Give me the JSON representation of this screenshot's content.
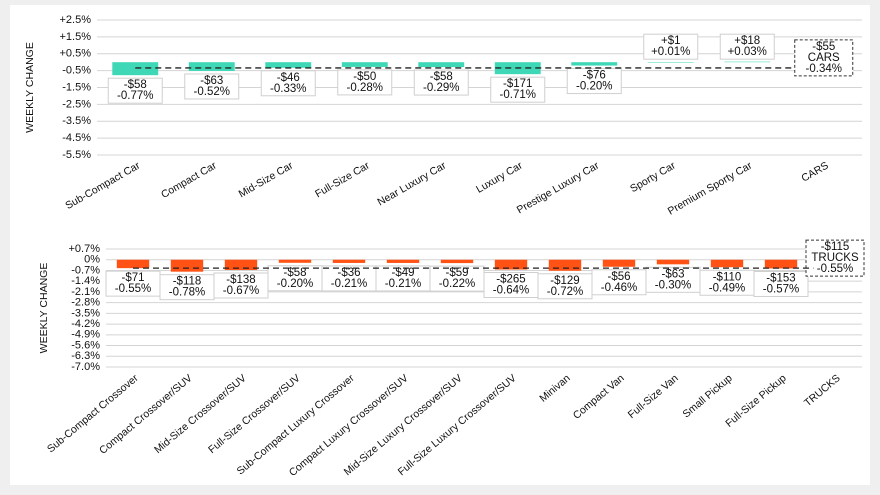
{
  "chart_data": [
    {
      "type": "bar",
      "y_label": "WEEKLY CHANGE",
      "categories": [
        "Sub-Compact Car",
        "Compact Car",
        "Mid-Size Car",
        "Full-Size Car",
        "Near Luxury Car",
        "Luxury Car",
        "Prestige Luxury Car",
        "Sporty Car",
        "Premium Sporty Car",
        "CARS"
      ],
      "values": [
        -0.77,
        -0.52,
        -0.33,
        -0.28,
        -0.29,
        -0.71,
        -0.2,
        0.01,
        0.03,
        -0.34
      ],
      "value_labels": [
        "-0.77%",
        "-0.52%",
        "-0.33%",
        "-0.28%",
        "-0.29%",
        "-0.71%",
        "-0.20%",
        "+0.01%",
        "+0.03%",
        "-0.34%"
      ],
      "dollar_labels": [
        "-$58",
        "-$63",
        "-$46",
        "-$50",
        "-$58",
        "-$171",
        "-$76",
        "+$1",
        "+$18",
        "-$55"
      ],
      "color": "#3ED8B6",
      "ylim": [
        -5.5,
        2.5
      ],
      "yticks": [
        {
          "value": 2.5,
          "label": "+2.5%"
        },
        {
          "value": 1.5,
          "label": "+1.5%"
        },
        {
          "value": 0.5,
          "label": "+0.5%"
        },
        {
          "value": -0.5,
          "label": "-0.5%"
        },
        {
          "value": -1.5,
          "label": "-1.5%"
        },
        {
          "value": -2.5,
          "label": "-2.5%"
        },
        {
          "value": -3.5,
          "label": "-3.5%"
        },
        {
          "value": -4.5,
          "label": "-4.5%"
        },
        {
          "value": -5.5,
          "label": "-5.5%"
        }
      ],
      "grid": true
    },
    {
      "type": "bar",
      "y_label": "WEEKLY CHANGE",
      "categories": [
        "Sub-Compact Crossover",
        "Compact Crossover/SUV",
        "Mid-Size Crossover/SUV",
        "Full-Size Crossover/SUV",
        "Sub-Compact Luxury Crossover",
        "Compact Luxury Crossover/SUV",
        "Mid-Size Luxury Crossover/SUV",
        "Full-Size Luxury Crossover/SUV",
        "Minivan",
        "Compact Van",
        "Full-Size Van",
        "Small Pickup",
        "Full-Size Pickup",
        "TRUCKS"
      ],
      "values": [
        -0.55,
        -0.78,
        -0.67,
        -0.2,
        -0.21,
        -0.21,
        -0.22,
        -0.64,
        -0.72,
        -0.46,
        -0.3,
        -0.49,
        -0.57,
        -0.55
      ],
      "value_labels": [
        "-0.55%",
        "-0.78%",
        "-0.67%",
        "-0.20%",
        "-0.21%",
        "-0.21%",
        "-0.22%",
        "-0.64%",
        "-0.72%",
        "-0.46%",
        "-0.30%",
        "-0.49%",
        "-0.57%",
        "-0.55%"
      ],
      "dollar_labels": [
        "-$71",
        "-$118",
        "-$138",
        "-$58",
        "-$36",
        "-$49",
        "-$59",
        "-$265",
        "-$129",
        "-$56",
        "-$63",
        "-$110",
        "-$153",
        "-$115"
      ],
      "color": "#FF5214",
      "ylim": [
        -7.0,
        0.7
      ],
      "yticks": [
        {
          "value": 0.7,
          "label": "+0.7%"
        },
        {
          "value": 0,
          "label": "0%"
        },
        {
          "value": -0.7,
          "label": "-0.7%"
        },
        {
          "value": -1.4,
          "label": "-1.4%"
        },
        {
          "value": -2.1,
          "label": "-2.1%"
        },
        {
          "value": -2.8,
          "label": "-2.8%"
        },
        {
          "value": -3.5,
          "label": "-3.5%"
        },
        {
          "value": -4.2,
          "label": "-4.2%"
        },
        {
          "value": -4.9,
          "label": "-4.9%"
        },
        {
          "value": -5.6,
          "label": "-5.6%"
        },
        {
          "value": -6.3,
          "label": "-6.3%"
        },
        {
          "value": -7.0,
          "label": "-7.0%"
        }
      ],
      "grid": true
    }
  ]
}
